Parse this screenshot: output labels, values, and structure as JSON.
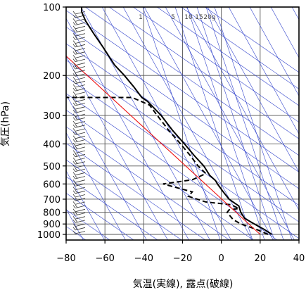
{
  "chart_data": {
    "type": "line",
    "title": "",
    "xlabel": "気温(実線), 露点(破線)",
    "ylabel": "気圧(hPa)",
    "xlim": [
      -80,
      40
    ],
    "ylim_hpa": [
      1050,
      100
    ],
    "y_scale": "log",
    "x_ticks": [
      -80,
      -60,
      -40,
      -20,
      0,
      20,
      40
    ],
    "x_tick_labels": [
      "−80",
      "−60",
      "−40",
      "−20",
      "0",
      "20",
      "40"
    ],
    "y_ticks": [
      100,
      200,
      300,
      400,
      500,
      600,
      700,
      800,
      900,
      1000
    ],
    "y_tick_labels": [
      "100",
      "200",
      "300",
      "400",
      "500",
      "600",
      "700",
      "800",
      "900",
      "1000"
    ],
    "grid": true,
    "mixing_ratio_labels": [
      "1",
      "5",
      "10",
      "15",
      "20g"
    ],
    "colors": {
      "temperature": "#000000",
      "dewpoint": "#000000",
      "reference": "#ee1111",
      "isotherms_adiabats": "#3344cc",
      "grid": "#555555",
      "wind_barbs": "#333333"
    },
    "series": [
      {
        "style": "solid",
        "points": [
          [
            26,
            1000
          ],
          [
            22,
            950
          ],
          [
            17,
            900
          ],
          [
            12,
            850
          ],
          [
            10,
            800
          ],
          [
            9,
            750
          ],
          [
            6,
            720
          ],
          [
            4,
            700
          ],
          [
            1,
            650
          ],
          [
            -2,
            600
          ],
          [
            -3,
            580
          ],
          [
            -6,
            550
          ],
          [
            -9,
            500
          ],
          [
            -14,
            450
          ],
          [
            -19,
            400
          ],
          [
            -25,
            350
          ],
          [
            -31,
            300
          ],
          [
            -38,
            260
          ],
          [
            -41,
            250
          ],
          [
            -45,
            225
          ],
          [
            -50,
            200
          ],
          [
            -55,
            180
          ],
          [
            -61,
            150
          ],
          [
            -66,
            130
          ],
          [
            -70,
            115
          ],
          [
            -72,
            105
          ],
          [
            -72,
            100
          ]
        ]
      },
      {
        "style": "dashed",
        "points": [
          [
            24,
            1000
          ],
          [
            18,
            950
          ],
          [
            10,
            900
          ],
          [
            6,
            860
          ],
          [
            3,
            800
          ],
          [
            4,
            780
          ],
          [
            9,
            770
          ],
          [
            5,
            740
          ],
          [
            -8,
            720
          ],
          [
            -17,
            680
          ],
          [
            -15,
            650
          ],
          [
            -30,
            600
          ],
          [
            -24,
            590
          ],
          [
            -15,
            575
          ],
          [
            -12,
            560
          ],
          [
            -8,
            540
          ],
          [
            -10,
            520
          ],
          [
            -12,
            500
          ],
          [
            -16,
            450
          ],
          [
            -21,
            400
          ],
          [
            -27,
            350
          ],
          [
            -33,
            300
          ],
          [
            -37,
            270
          ],
          [
            -46,
            250
          ],
          [
            -80,
            250
          ]
        ]
      },
      {
        "style": "reference",
        "points": [
          [
            20,
            1000
          ],
          [
            -85,
            150
          ]
        ]
      }
    ]
  }
}
